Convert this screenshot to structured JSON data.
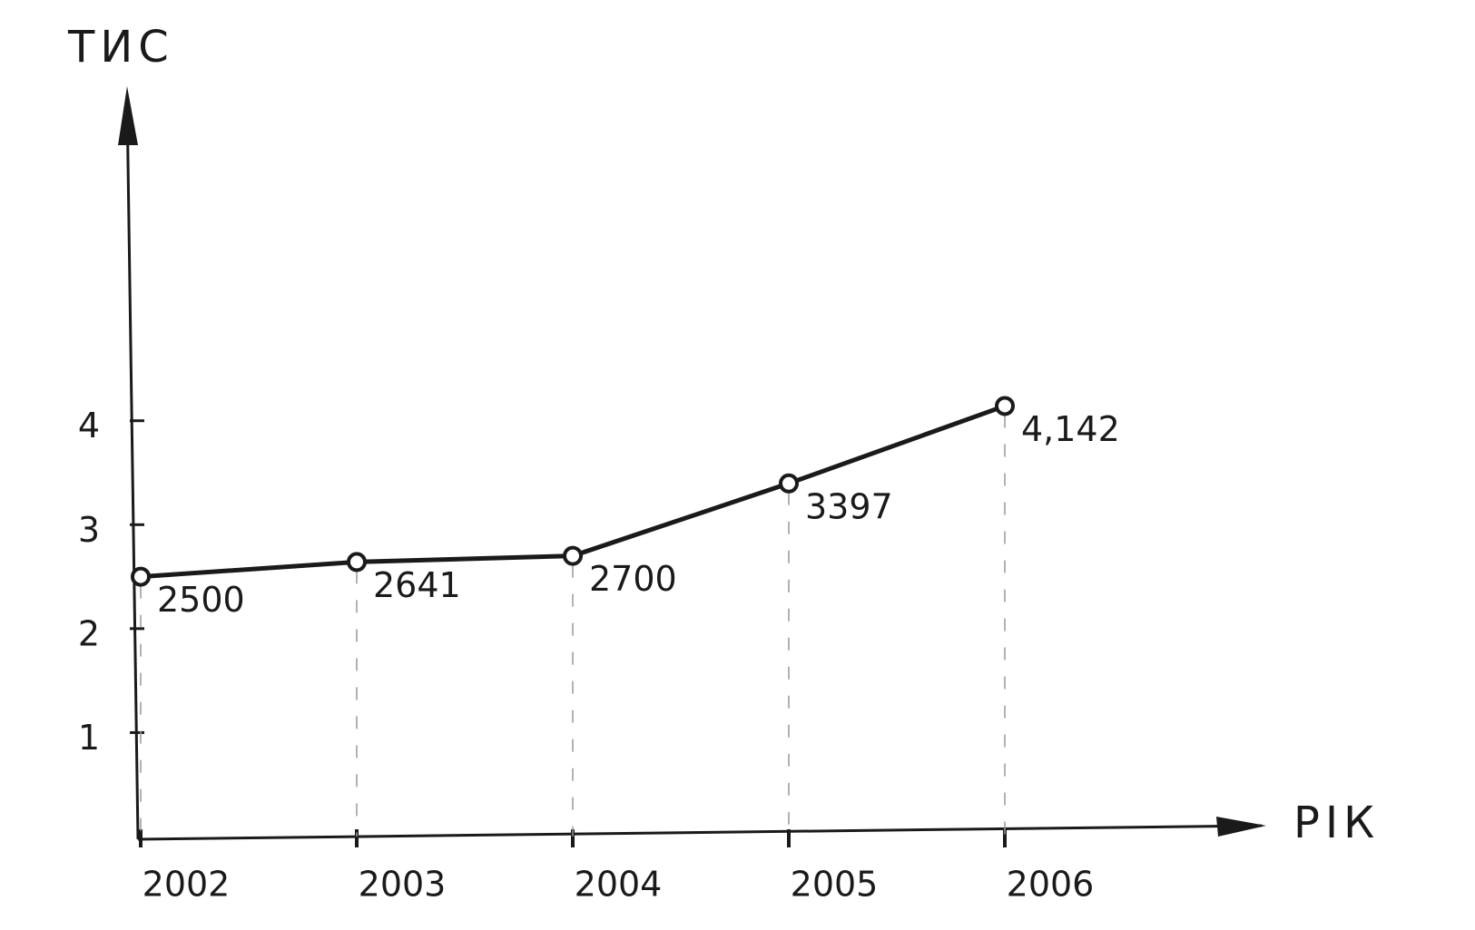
{
  "chart_data": {
    "type": "line",
    "y_label": "ТИС",
    "x_label": "РІК",
    "categories": [
      "2002",
      "2003",
      "2004",
      "2005",
      "2006"
    ],
    "values": [
      2.5,
      2.641,
      2.7,
      3.397,
      4.142
    ],
    "value_labels": [
      "2500",
      "2641",
      "2700",
      "3397",
      "4,142"
    ],
    "color": "#1a1a1a",
    "ylim": [
      0,
      7
    ],
    "yticks": [
      1,
      2,
      3,
      4
    ],
    "grid": false
  }
}
